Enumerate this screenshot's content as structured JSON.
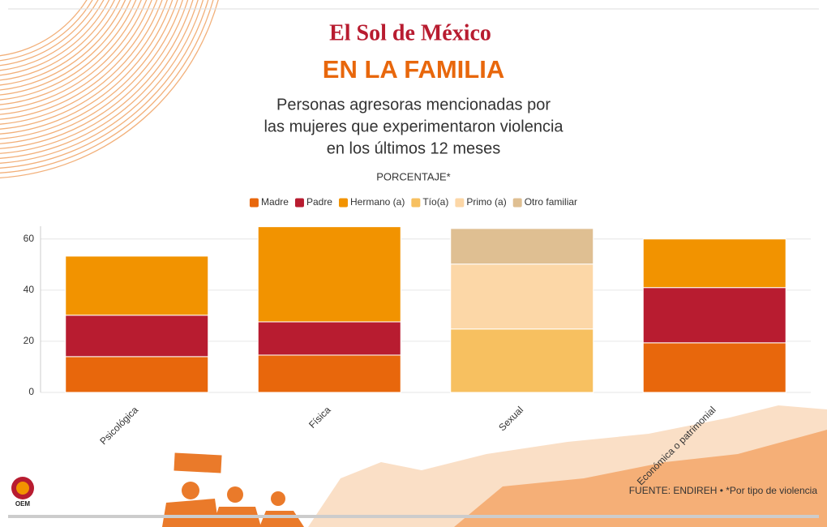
{
  "brand": "El Sol de México",
  "chart_data": {
    "type": "stacked-bar",
    "title": "EN LA FAMILIA",
    "subtitle": [
      "Personas agresoras mencionadas por",
      "las mujeres que experimentaron violencia",
      "en los últimos 12 meses"
    ],
    "y_label": "PORCENTAJE*",
    "categories": [
      "Psicológica",
      "Física",
      "Sexual",
      "Económica o patrimonial"
    ],
    "series": [
      {
        "name": "Madre",
        "color": "#e8670c",
        "values": [
          14,
          14.6,
          null,
          19.4
        ]
      },
      {
        "name": "Padre",
        "color": "#b81c30",
        "values": [
          16.2,
          13,
          null,
          21.6
        ]
      },
      {
        "name": "Hermano (a)",
        "color": "#f29300",
        "values": [
          23.1,
          37.2,
          null,
          19
        ]
      },
      {
        "name": "Tío(a)",
        "color": "#f7c060",
        "values": [
          null,
          null,
          24.8,
          null
        ]
      },
      {
        "name": "Primo (a)",
        "color": "#fcd7a7",
        "values": [
          null,
          null,
          25.4,
          null
        ]
      },
      {
        "name": "Otro familiar",
        "color": "#dfbf92",
        "values": [
          null,
          null,
          13.9,
          null
        ]
      }
    ],
    "ylim": [
      0,
      65
    ],
    "yticks": [
      0,
      20,
      40,
      60
    ],
    "grid": true,
    "source": "FUENTE: ENDIREH • *Por tipo de violencia"
  },
  "footer_logo": "OEM"
}
